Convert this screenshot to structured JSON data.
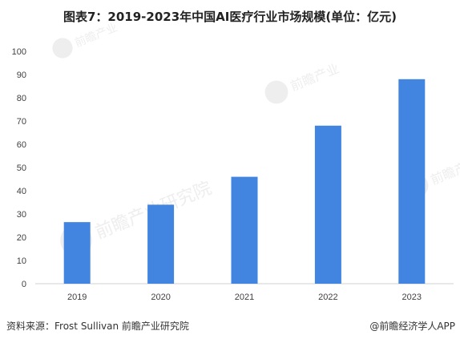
{
  "chart_data": {
    "type": "bar",
    "title": "图表7：2019-2023年中国AI医疗行业市场规模(单位：亿元)",
    "categories": [
      "2019",
      "2020",
      "2021",
      "2022",
      "2023"
    ],
    "values": [
      26.5,
      34,
      46,
      68,
      88
    ],
    "ylim": [
      0,
      100
    ],
    "yticks": [
      0,
      10,
      20,
      30,
      40,
      50,
      60,
      70,
      80,
      90,
      100
    ],
    "xlabel": "",
    "ylabel": "",
    "grid": false,
    "legend": "none",
    "bar_color": "#4285e0"
  },
  "watermark": {
    "text": "前瞻产业研究院",
    "short_text": "前瞻产业",
    "color": "#eeeeee"
  },
  "footer": {
    "source": "资料来源：Frost Sullivan 前瞻产业研究院",
    "brand": "@前瞻经济学人APP"
  }
}
